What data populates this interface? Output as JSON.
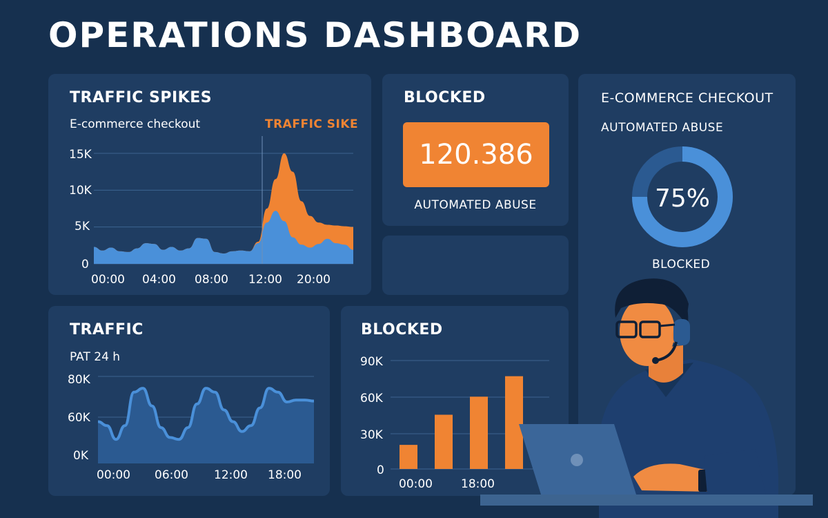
{
  "page_title": "OPERATIONS DASHBOARD",
  "colors": {
    "background": "#16304f",
    "panel": "#1f3d62",
    "orange": "#f08433",
    "blue": "#4a90d9",
    "dark_blue": "#2b5a91"
  },
  "traffic_spikes": {
    "title": "TRAFFIC SPIKES",
    "subtitle": "E-commerce checkout",
    "annotation": "TRAFFIC SIKE",
    "y_ticks": [
      "15K",
      "10K",
      "5K",
      "0"
    ],
    "x_ticks": [
      "00:00",
      "04:00",
      "08:00",
      "12:00",
      "20:00"
    ]
  },
  "blocked_kpi": {
    "title": "BLOCKED",
    "value": "120.386",
    "caption": "AUTOMATED ABUSE"
  },
  "donut": {
    "title": "E-COMMERCE CHECKOUT",
    "subtitle": "AUTOMATED ABUSE",
    "percent_label": "75%",
    "percent": 75,
    "caption": "BLOCKED"
  },
  "traffic": {
    "title": "TRAFFIC",
    "subtitle": "PAT 24 h",
    "y_ticks": [
      "80K",
      "60K",
      "0K"
    ],
    "x_ticks": [
      "00:00",
      "06:00",
      "12:00",
      "18:00"
    ]
  },
  "blocked_bars": {
    "title": "BLOCKED",
    "y_ticks": [
      "90K",
      "60K",
      "30K",
      "0"
    ],
    "x_ticks": [
      "00:00",
      "18:00"
    ]
  },
  "chart_data": [
    {
      "type": "area",
      "title": "TRAFFIC SPIKES",
      "subtitle": "E-commerce checkout",
      "ylim": [
        0,
        15000
      ],
      "x": [
        0,
        1,
        2,
        3,
        4,
        5,
        6,
        7,
        8,
        9,
        10,
        11,
        12,
        13,
        14,
        15,
        16,
        17,
        18,
        19,
        20,
        21,
        22,
        23,
        24,
        25,
        26,
        27,
        28,
        29,
        30
      ],
      "series": [
        {
          "values": [
            2300,
            1800,
            2200,
            1700,
            1600,
            2100,
            2800,
            2700,
            1900,
            2300,
            1800,
            2100,
            3500,
            3400,
            1600,
            1400,
            1700,
            1800,
            1700,
            2800,
            5600,
            7200,
            5800,
            3600,
            2600,
            2200,
            2700,
            3400,
            2800,
            2600,
            1900
          ]
        },
        {
          "values": [
            2300,
            1800,
            2200,
            1700,
            1600,
            2100,
            2800,
            2700,
            1900,
            2300,
            1800,
            2100,
            3500,
            3400,
            1600,
            1400,
            1700,
            1800,
            1700,
            3000,
            7500,
            11500,
            15000,
            12500,
            8500,
            6500,
            5600,
            5300,
            5200,
            5100,
            5000
          ]
        }
      ],
      "annotation": "TRAFFIC SIKE"
    },
    {
      "type": "area",
      "title": "TRAFFIC",
      "subtitle": "PAT 24 h",
      "x": [
        0,
        1,
        2,
        3,
        4,
        5,
        6,
        7,
        8,
        9,
        10,
        11,
        12,
        13,
        14,
        15,
        16,
        17,
        18,
        19,
        20,
        21,
        22,
        23,
        24
      ],
      "series": [
        {
          "values": [
            57000,
            55000,
            48000,
            55000,
            72000,
            74000,
            65000,
            54000,
            49000,
            48000,
            54000,
            66000,
            74000,
            72000,
            63000,
            57000,
            52000,
            55000,
            64000,
            74000,
            72000,
            67000,
            68000,
            68000,
            67500
          ]
        }
      ]
    },
    {
      "type": "bar",
      "title": "BLOCKED",
      "ylim": [
        0,
        90000
      ],
      "categories": [
        "1",
        "2",
        "3",
        "4"
      ],
      "values": [
        20000,
        45000,
        60000,
        77000
      ]
    },
    {
      "type": "pie",
      "title": "E-COMMERCE CHECKOUT",
      "values": [
        75,
        25
      ]
    }
  ]
}
